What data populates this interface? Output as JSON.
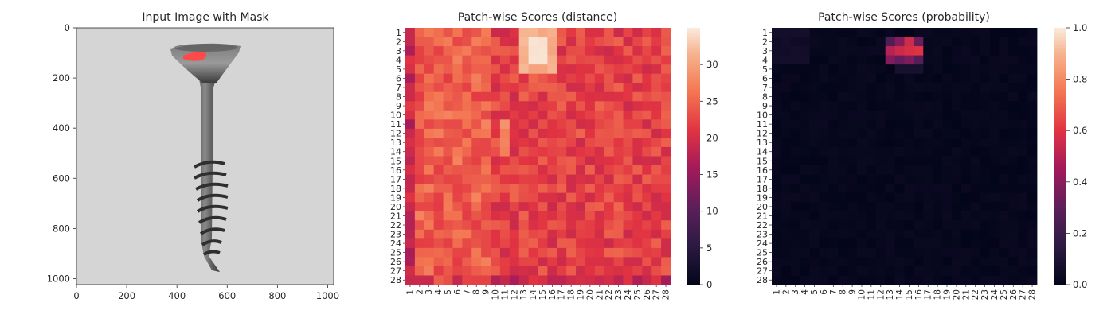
{
  "figure": {
    "panels": [
      "Input Image with Mask",
      "Patch-wise Scores (distance)",
      "Patch-wise Scores (probability)"
    ]
  },
  "chart_data": [
    {
      "type": "image",
      "title": "Input Image with Mask",
      "xticks": [
        0,
        200,
        400,
        600,
        800,
        1000
      ],
      "yticks": [
        0,
        200,
        400,
        600,
        800,
        1000
      ],
      "xlim": [
        0,
        1024
      ],
      "ylim": [
        1024,
        0
      ],
      "content": "grayscale photograph of a screw with a red anomaly mask on the head",
      "mask_color": "#ff4a4a"
    },
    {
      "type": "heatmap",
      "title": "Patch-wise Scores (distance)",
      "rows": 28,
      "cols": 28,
      "row_labels": [
        "1",
        "2",
        "3",
        "4",
        "5",
        "6",
        "7",
        "8",
        "9",
        "10",
        "11",
        "12",
        "13",
        "14",
        "15",
        "16",
        "17",
        "18",
        "19",
        "20",
        "21",
        "22",
        "23",
        "24",
        "25",
        "26",
        "27",
        "28"
      ],
      "col_labels": [
        "1",
        "2",
        "3",
        "4",
        "5",
        "6",
        "7",
        "8",
        "9",
        "10",
        "11",
        "12",
        "13",
        "14",
        "15",
        "16",
        "17",
        "18",
        "19",
        "20",
        "21",
        "22",
        "23",
        "24",
        "25",
        "26",
        "27",
        "28"
      ],
      "colorbar": {
        "min": 0,
        "max": 35,
        "ticks": [
          0,
          5,
          10,
          15,
          20,
          25,
          30
        ]
      },
      "colormap": "rocket",
      "summary": "values mostly 18-28; hotspot ~33 at rows 2-4, cols 13-16; hot column band rows 11-13 col 11"
    },
    {
      "type": "heatmap",
      "title": "Patch-wise Scores (probability)",
      "rows": 28,
      "cols": 28,
      "row_labels": [
        "1",
        "2",
        "3",
        "4",
        "5",
        "6",
        "7",
        "8",
        "9",
        "10",
        "11",
        "12",
        "13",
        "14",
        "15",
        "16",
        "17",
        "18",
        "19",
        "20",
        "21",
        "22",
        "23",
        "24",
        "25",
        "26",
        "27",
        "28"
      ],
      "col_labels": [
        "1",
        "2",
        "3",
        "4",
        "5",
        "6",
        "7",
        "8",
        "9",
        "10",
        "11",
        "12",
        "13",
        "14",
        "15",
        "16",
        "17",
        "18",
        "19",
        "20",
        "21",
        "22",
        "23",
        "24",
        "25",
        "26",
        "27",
        "28"
      ],
      "colorbar": {
        "min": 0,
        "max": 1,
        "ticks": [
          "0.0",
          "0.2",
          "0.4",
          "0.6",
          "0.8",
          "1.0"
        ]
      },
      "colormap": "rocket",
      "summary": "near 0 everywhere; peak ~0.6 at row 3 col 15; elevated 0.3-0.5 at rows 2-4 cols 13-16"
    }
  ]
}
